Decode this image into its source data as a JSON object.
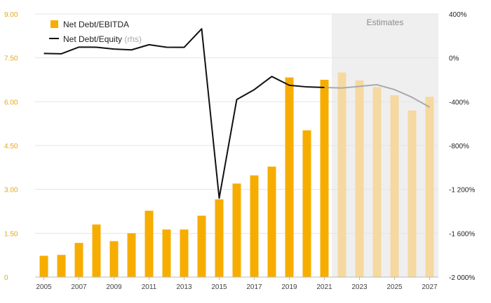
{
  "chart_data": {
    "type": "bar+line",
    "x": [
      2005,
      2006,
      2007,
      2008,
      2009,
      2010,
      2011,
      2012,
      2013,
      2014,
      2015,
      2016,
      2017,
      2018,
      2019,
      2020,
      2021,
      2022,
      2023,
      2024,
      2025,
      2026,
      2027
    ],
    "x_tick_labels": [
      "2005",
      "2007",
      "2009",
      "2011",
      "2013",
      "2015",
      "2017",
      "2019",
      "2021",
      "2023",
      "2025",
      "2027"
    ],
    "estimates_start": 2022,
    "estimates_label": "Estimates",
    "series": [
      {
        "name": "Net Debt/EBITDA",
        "type": "bar",
        "axis": "left",
        "color": "#f7ad00",
        "estimate_color": "#f5d9a0",
        "values": [
          0.73,
          0.76,
          1.17,
          1.8,
          1.23,
          1.5,
          2.27,
          1.63,
          1.63,
          2.1,
          2.66,
          3.2,
          3.48,
          3.78,
          6.83,
          5.02,
          6.75,
          7.0,
          6.73,
          6.5,
          6.22,
          5.7,
          6.17
        ]
      },
      {
        "name": "Net Debt/Equity",
        "name_suffix": "(rhs)",
        "type": "line",
        "axis": "right",
        "color": "#111111",
        "estimate_color": "#aaaaaa",
        "values": [
          40,
          37,
          98,
          97,
          80,
          73,
          120,
          97,
          96,
          265,
          -1280,
          -380,
          -290,
          -170,
          -250,
          -265,
          -270,
          -275,
          -260,
          -245,
          -290,
          -360,
          -450
        ]
      }
    ],
    "left_axis": {
      "ylim": [
        0,
        9
      ],
      "ticks": [
        0,
        1.5,
        3,
        4.5,
        6,
        7.5,
        9
      ],
      "tick_labels": [
        "0",
        "1.50",
        "3.00",
        "4.50",
        "6.00",
        "7.50",
        "9.00"
      ]
    },
    "right_axis": {
      "ylim": [
        -2000,
        400
      ],
      "ticks": [
        400,
        0,
        -400,
        -800,
        -1200,
        -1600,
        -2000
      ],
      "tick_labels": [
        "400%",
        "0%",
        "-400%",
        "-800%",
        "-1 200%",
        "-1 600%",
        "-2 000%"
      ]
    },
    "grid": true,
    "legend_position": "top-left"
  }
}
